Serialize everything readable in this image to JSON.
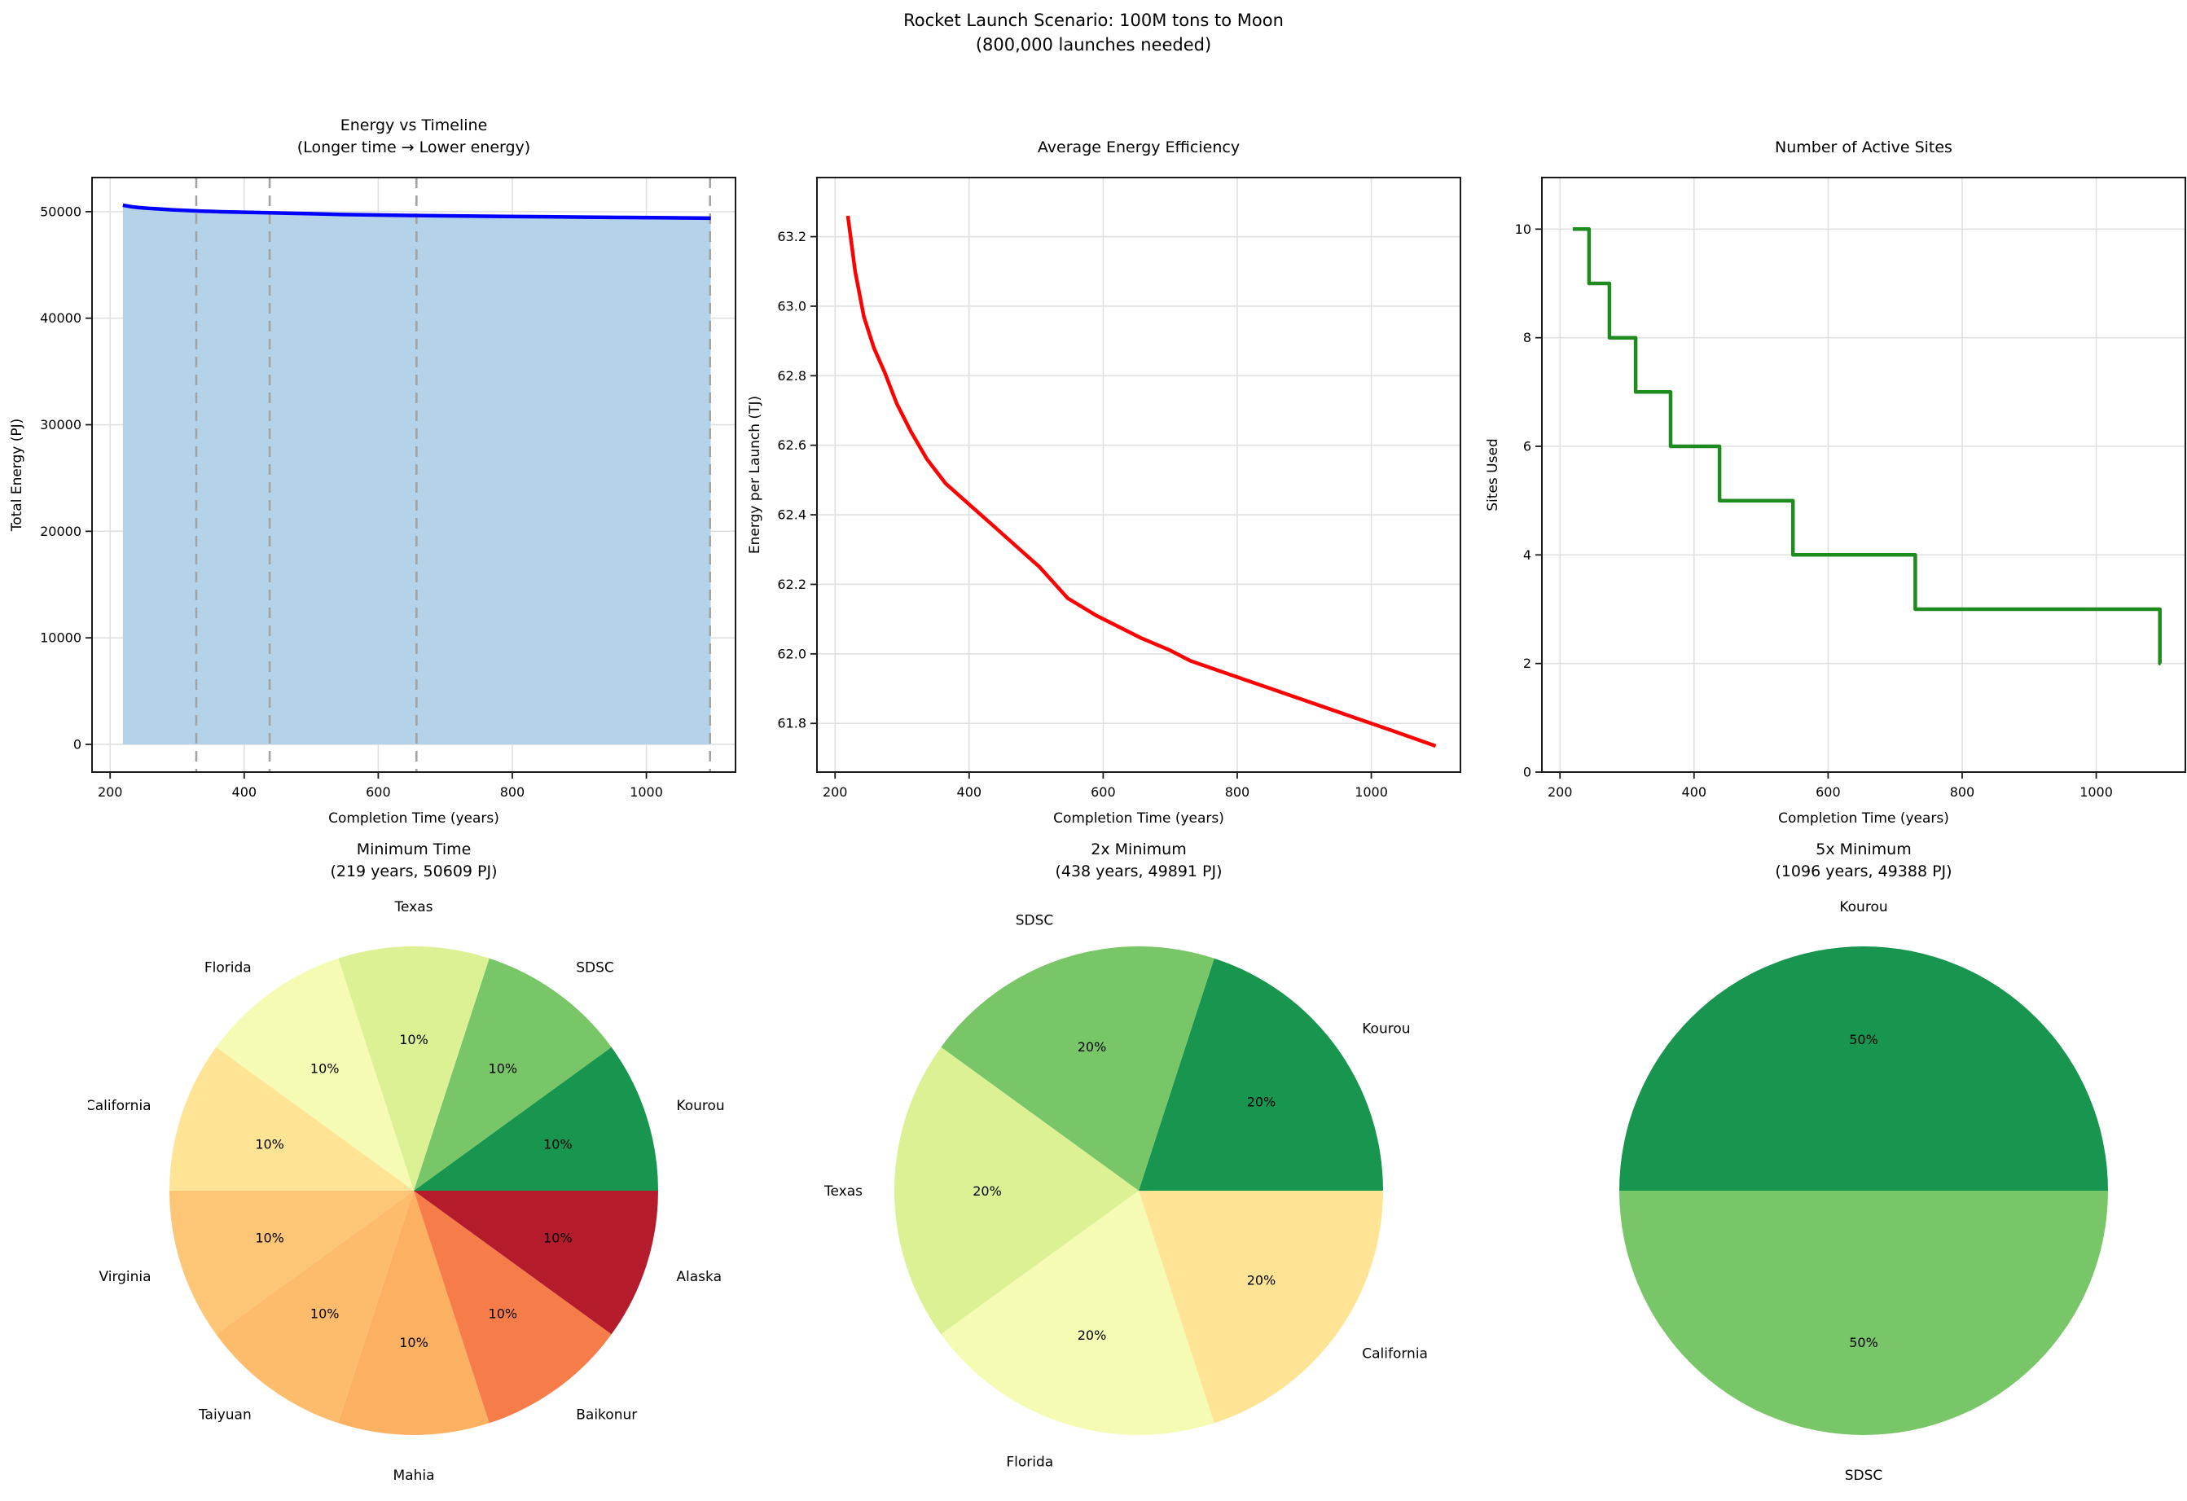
{
  "suptitle": {
    "line1": "Rocket Launch Scenario: 100M tons to Moon",
    "line2": "(800,000 launches needed)"
  },
  "chart_data": [
    {
      "type": "line",
      "title_lines": [
        "Energy vs Timeline",
        "(Longer time → Lower energy)"
      ],
      "xlabel": "Completion Time (years)",
      "ylabel": "Total Energy (PJ)",
      "xlim": [
        173,
        1133
      ],
      "ylim": [
        -2600,
        53200
      ],
      "xticks": [
        200,
        400,
        600,
        800,
        1000
      ],
      "yticks": [
        0,
        10000,
        20000,
        30000,
        40000,
        50000
      ],
      "ytick_decimals": 0,
      "grid": true,
      "line_color": "#0000ff",
      "fill_color": "#b5d3e8",
      "fill_baseline": 0,
      "dashed_vlines": [
        328.5,
        438,
        657,
        1095
      ],
      "dash_color": "#a3a3a3",
      "points": [
        [
          219,
          50608
        ],
        [
          230,
          50480
        ],
        [
          243,
          50376
        ],
        [
          258,
          50304
        ],
        [
          274,
          50248
        ],
        [
          292,
          50176
        ],
        [
          313,
          50112
        ],
        [
          337,
          50048
        ],
        [
          365,
          49992
        ],
        [
          400,
          49944
        ],
        [
          438,
          49892
        ],
        [
          470,
          49848
        ],
        [
          505,
          49800
        ],
        [
          547,
          49728
        ],
        [
          590,
          49688
        ],
        [
          657,
          49636
        ],
        [
          700,
          49608
        ],
        [
          730,
          49584
        ],
        [
          790,
          49552
        ],
        [
          850,
          49520
        ],
        [
          910,
          49488
        ],
        [
          970,
          49456
        ],
        [
          1030,
          49424
        ],
        [
          1096,
          49388
        ]
      ]
    },
    {
      "type": "line",
      "title_lines": [
        "Average Energy Efficiency"
      ],
      "xlabel": "Completion Time (years)",
      "ylabel": "Energy per Launch (TJ)",
      "xlim": [
        173,
        1133
      ],
      "ylim": [
        61.66,
        63.37
      ],
      "xticks": [
        200,
        400,
        600,
        800,
        1000
      ],
      "yticks": [
        61.8,
        62.0,
        62.2,
        62.4,
        62.6,
        62.8,
        63.0,
        63.2
      ],
      "ytick_decimals": 1,
      "grid": true,
      "line_color": "#ff0000",
      "points": [
        [
          219,
          63.26
        ],
        [
          230,
          63.1
        ],
        [
          243,
          62.97
        ],
        [
          258,
          62.88
        ],
        [
          274,
          62.81
        ],
        [
          292,
          62.72
        ],
        [
          313,
          62.64
        ],
        [
          337,
          62.56
        ],
        [
          365,
          62.49
        ],
        [
          400,
          62.43
        ],
        [
          438,
          62.365
        ],
        [
          470,
          62.31
        ],
        [
          505,
          62.25
        ],
        [
          547,
          62.16
        ],
        [
          590,
          62.11
        ],
        [
          657,
          62.045
        ],
        [
          700,
          62.01
        ],
        [
          730,
          61.98
        ],
        [
          790,
          61.94
        ],
        [
          850,
          61.9
        ],
        [
          910,
          61.86
        ],
        [
          970,
          61.82
        ],
        [
          1030,
          61.78
        ],
        [
          1096,
          61.735
        ]
      ]
    },
    {
      "type": "step",
      "title_lines": [
        "Number of Active Sites"
      ],
      "xlabel": "Completion Time (years)",
      "ylabel": "Sites Used",
      "xlim": [
        173,
        1133
      ],
      "ylim": [
        0,
        10.95
      ],
      "xticks": [
        200,
        400,
        600,
        800,
        1000
      ],
      "yticks": [
        0,
        2,
        4,
        6,
        8,
        10
      ],
      "ytick_decimals": 0,
      "grid": true,
      "line_color": "#1f8b1f",
      "points": [
        [
          219,
          10
        ],
        [
          243.3,
          9
        ],
        [
          273.75,
          8
        ],
        [
          312.86,
          7
        ],
        [
          365,
          6
        ],
        [
          438,
          5
        ],
        [
          547.5,
          4
        ],
        [
          730,
          3
        ],
        [
          1095,
          2
        ],
        [
          1096,
          2
        ]
      ]
    },
    {
      "type": "pie",
      "title_lines": [
        "Minimum Time",
        "(219 years, 50609 PJ)"
      ],
      "slices": [
        {
          "label": "Kourou",
          "pct": 10,
          "pct_label": "10%",
          "color": "#18954f"
        },
        {
          "label": "SDSC",
          "pct": 10,
          "pct_label": "10%",
          "color": "#78c667"
        },
        {
          "label": "Texas",
          "pct": 10,
          "pct_label": "10%",
          "color": "#dcf094"
        },
        {
          "label": "Florida",
          "pct": 10,
          "pct_label": "10%",
          "color": "#f6fbb4"
        },
        {
          "label": "California",
          "pct": 10,
          "pct_label": "10%",
          "color": "#fee494"
        },
        {
          "label": "Virginia",
          "pct": 10,
          "pct_label": "10%",
          "color": "#fdc676"
        },
        {
          "label": "Taiyuan",
          "pct": 10,
          "pct_label": "10%",
          "color": "#fdbc6c"
        },
        {
          "label": "Mahia",
          "pct": 10,
          "pct_label": "10%",
          "color": "#fcb062"
        },
        {
          "label": "Baikonur",
          "pct": 10,
          "pct_label": "10%",
          "color": "#f67d4a"
        },
        {
          "label": "Alaska",
          "pct": 10,
          "pct_label": "10%",
          "color": "#b41c2c"
        }
      ]
    },
    {
      "type": "pie",
      "title_lines": [
        "2x Minimum",
        "(438 years, 49891 PJ)"
      ],
      "slices": [
        {
          "label": "Kourou",
          "pct": 20,
          "pct_label": "20%",
          "color": "#18954f"
        },
        {
          "label": "SDSC",
          "pct": 20,
          "pct_label": "20%",
          "color": "#78c667"
        },
        {
          "label": "Texas",
          "pct": 20,
          "pct_label": "20%",
          "color": "#dcf094"
        },
        {
          "label": "Florida",
          "pct": 20,
          "pct_label": "20%",
          "color": "#f6fbb4"
        },
        {
          "label": "California",
          "pct": 20,
          "pct_label": "20%",
          "color": "#fee494"
        }
      ]
    },
    {
      "type": "pie",
      "title_lines": [
        "5x Minimum",
        "(1096 years, 49388 PJ)"
      ],
      "slices": [
        {
          "label": "Kourou",
          "pct": 50,
          "pct_label": "50%",
          "color": "#18954f"
        },
        {
          "label": "SDSC",
          "pct": 50,
          "pct_label": "50%",
          "color": "#78c667"
        }
      ]
    }
  ]
}
